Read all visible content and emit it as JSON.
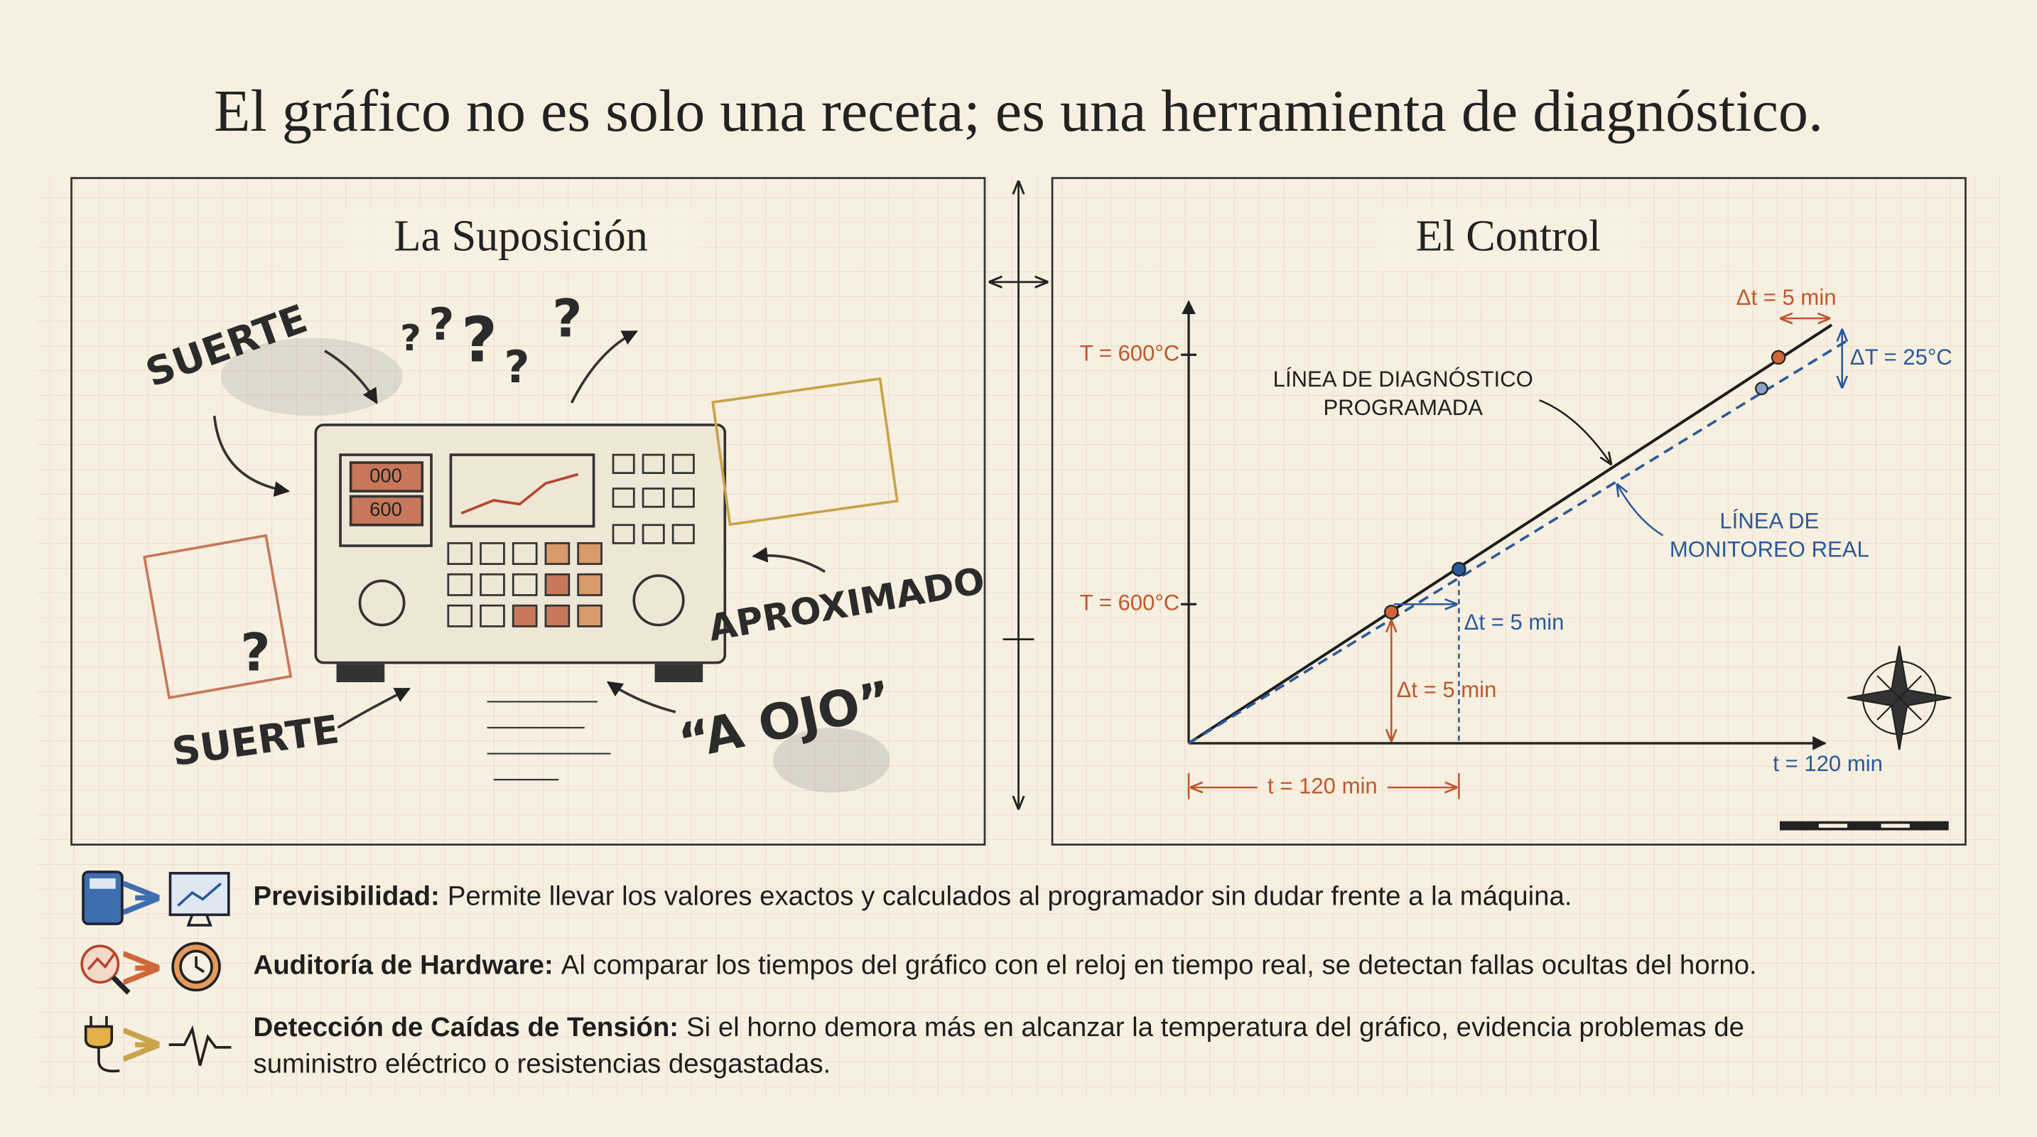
{
  "title": "El gráfico no es solo una receta; es una herramienta de diagnóstico.",
  "left_panel": {
    "title": "La Suposición",
    "labels": [
      "SUERTE",
      "APROXIMADO",
      "“A OJO”",
      "SUERTE"
    ],
    "question_marks": [
      "?",
      "?",
      "?",
      "?",
      "?",
      "?"
    ],
    "display": [
      "000",
      "600"
    ]
  },
  "right_panel": {
    "title": "El Control",
    "temp_labels": [
      "T = 600°C",
      "T = 600°C"
    ],
    "programmed_line": [
      "LÍNEA DE DIAGNÓSTICO",
      "PROGRAMADA"
    ],
    "real_line": [
      "LÍNEA DE",
      "MONITOREO REAL"
    ],
    "delta_t_top": "Δt = 5 min",
    "delta_T": "ΔT = 25°C",
    "delta_t_mid": "Δt = 5 min",
    "delta_t_low": "Δt = 5 min",
    "time_orange": "t = 120 min",
    "time_blue": "t = 120 min"
  },
  "bullets": [
    {
      "term": "Previsibilidad:",
      "lines": [
        "Permite llevar los valores exactos y calculados al programador sin dudar frente a la máquina."
      ]
    },
    {
      "term": "Auditoría de Hardware:",
      "lines": [
        "Al comparar los tiempos del gráfico con el reloj en tiempo real, se detectan fallas ocultas del horno."
      ]
    },
    {
      "term": "Detección de Caídas de Tensión:",
      "lines": [
        "Si el horno demora más en alcanzar la temperatura del gráfico, evidencia problemas de",
        "suministro eléctrico o resistencias desgastadas."
      ]
    }
  ]
}
